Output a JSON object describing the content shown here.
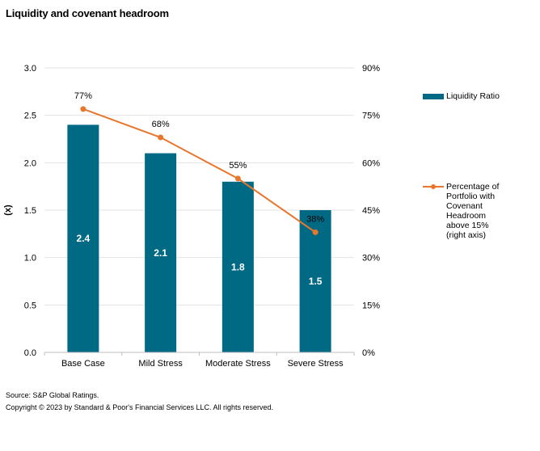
{
  "title": "Liquidity and covenant headroom",
  "footer": {
    "source": "Source: S&P Global Ratings.",
    "copyright": "Copyright © 2023 by Standard & Poor's Financial Services LLC. All rights reserved."
  },
  "colors": {
    "bar": "#006a85",
    "line": "#e8762d",
    "grid": "#e3e3e3",
    "axis": "#bfbfbf"
  },
  "chart_data": {
    "type": "bar",
    "categories": [
      "Base Case",
      "Mild Stress",
      "Moderate Stress",
      "Severe Stress"
    ],
    "series": [
      {
        "name": "Liquidity Ratio",
        "axis": "left",
        "type": "bar",
        "values": [
          2.4,
          2.1,
          1.8,
          1.5
        ],
        "labels": [
          "2.4",
          "2.1",
          "1.8",
          "1.5"
        ]
      },
      {
        "name": "Percentage of Portfolio with Covenant Headroom above 15% (right axis)",
        "axis": "right",
        "type": "line",
        "values": [
          77,
          68,
          55,
          38
        ],
        "labels": [
          "77%",
          "68%",
          "55%",
          "38%"
        ]
      }
    ],
    "ylabel": "(x)",
    "ylim": [
      0,
      3.0
    ],
    "yticks": [
      "0.0",
      "0.5",
      "1.0",
      "1.5",
      "2.0",
      "2.5",
      "3.0"
    ],
    "y2lim": [
      0,
      90
    ],
    "y2ticks": [
      "0%",
      "15%",
      "30%",
      "45%",
      "60%",
      "75%",
      "90%"
    ],
    "grid": true,
    "legend_position": "right"
  }
}
